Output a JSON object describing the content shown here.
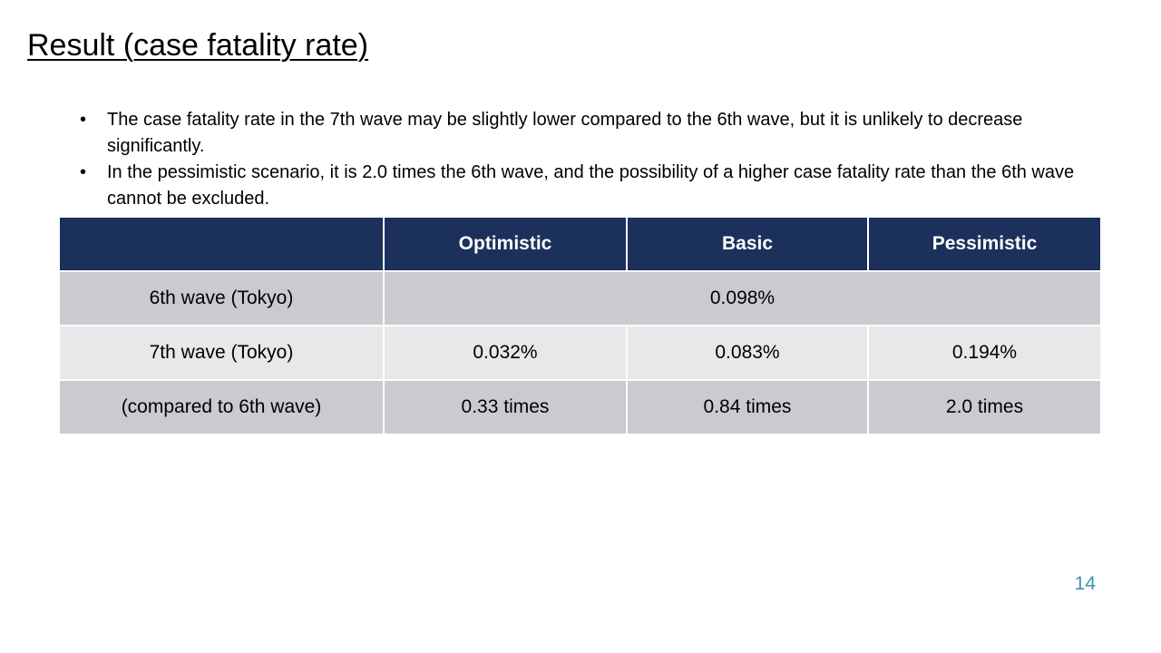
{
  "slide": {
    "title": "Result (case fatality rate)",
    "page_number": "14"
  },
  "bullets": [
    "The case fatality rate in the 7th wave may be slightly lower compared to the 6th wave, but it is unlikely to decrease significantly.",
    "In the pessimistic scenario, it is 2.0 times the 6th wave, and the possibility of a higher case fatality rate than the 6th wave cannot be excluded."
  ],
  "bullet_symbol": "•",
  "table": {
    "headers": [
      "",
      "Optimistic",
      "Basic",
      "Pessimistic"
    ],
    "rows": [
      {
        "label": "6th wave (Tokyo)",
        "merged_value": "0.098%"
      },
      {
        "label": "7th wave (Tokyo)",
        "values": [
          "0.032%",
          "0.083%",
          "0.194%"
        ]
      },
      {
        "label": "(compared to 6th wave)",
        "values": [
          "0.33 times",
          "0.84 times",
          "2.0 times"
        ]
      }
    ]
  },
  "colors": {
    "header_bg": "#1b305b",
    "row_dark_bg": "#cacbcf",
    "row_light_bg": "#e7e8ea",
    "page_number": "#3f8fb3"
  }
}
